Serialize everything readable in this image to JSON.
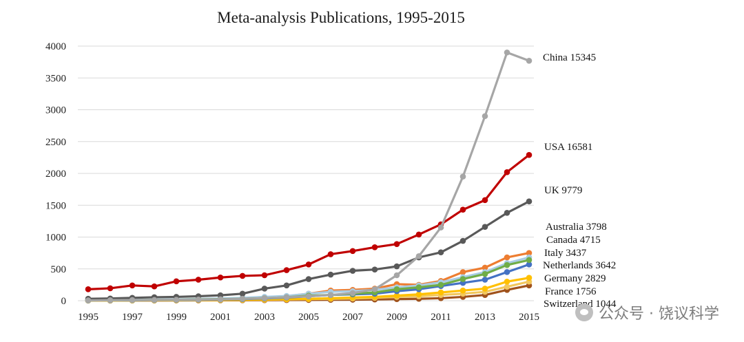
{
  "chart_data": {
    "type": "line",
    "title": "Meta-analysis  Publications, 1995-2015",
    "xlabel": "",
    "ylabel": "",
    "x": [
      1995,
      1996,
      1997,
      1998,
      1999,
      2000,
      2001,
      2002,
      2003,
      2004,
      2005,
      2006,
      2007,
      2008,
      2009,
      2010,
      2011,
      2012,
      2013,
      2014,
      2015
    ],
    "xticks": [
      "1995",
      "1997",
      "1999",
      "2001",
      "2003",
      "2005",
      "2007",
      "2009",
      "2011",
      "2013",
      "2015"
    ],
    "yticks": [
      "0",
      "500",
      "1000",
      "1500",
      "2000",
      "2500",
      "3000",
      "3500",
      "4000"
    ],
    "ylim": [
      0,
      4000
    ],
    "grid": "horizontal",
    "series": [
      {
        "name": "China 15345",
        "color": "#a6a6a6",
        "values": [
          5,
          8,
          10,
          12,
          15,
          18,
          22,
          30,
          40,
          55,
          70,
          90,
          120,
          180,
          400,
          700,
          1150,
          1950,
          2900,
          3900,
          3770
        ]
      },
      {
        "name": "USA 16581",
        "color": "#c00000",
        "values": [
          180,
          195,
          240,
          225,
          305,
          330,
          365,
          390,
          400,
          480,
          570,
          730,
          780,
          840,
          890,
          1040,
          1200,
          1430,
          1580,
          2020,
          2290
        ]
      },
      {
        "name": "UK 9779",
        "color": "#595959",
        "values": [
          30,
          35,
          45,
          55,
          60,
          70,
          85,
          110,
          190,
          240,
          340,
          410,
          470,
          490,
          540,
          680,
          760,
          940,
          1160,
          1380,
          1560
        ]
      },
      {
        "name": "Australia 3798",
        "color": "#70ad47",
        "values": [
          5,
          8,
          10,
          12,
          15,
          20,
          25,
          30,
          40,
          55,
          80,
          90,
          110,
          130,
          180,
          210,
          250,
          340,
          420,
          560,
          640
        ]
      },
      {
        "name": "Canada 4715",
        "color": "#a9cce3",
        "values": [
          10,
          12,
          15,
          18,
          22,
          28,
          35,
          45,
          60,
          75,
          110,
          140,
          150,
          170,
          210,
          240,
          290,
          370,
          450,
          590,
          680
        ]
      },
      {
        "name": "Italy 3437",
        "color": "#ed7d31",
        "values": [
          8,
          10,
          12,
          14,
          16,
          20,
          25,
          35,
          50,
          70,
          110,
          160,
          170,
          190,
          260,
          250,
          310,
          450,
          520,
          680,
          750
        ]
      },
      {
        "name": "Netherlands 3642",
        "color": "#4472c4",
        "values": [
          5,
          6,
          8,
          10,
          12,
          15,
          20,
          25,
          35,
          50,
          70,
          90,
          100,
          110,
          150,
          180,
          230,
          280,
          330,
          450,
          570
        ]
      },
      {
        "name": "Germany  2829",
        "color": "#ffc000",
        "values": [
          3,
          4,
          5,
          6,
          8,
          10,
          12,
          15,
          20,
          25,
          30,
          40,
          50,
          60,
          80,
          100,
          130,
          160,
          190,
          300,
          360
        ]
      },
      {
        "name": "France  1756",
        "color": "#f2c75c",
        "values": [
          2,
          3,
          4,
          5,
          6,
          8,
          10,
          12,
          15,
          20,
          25,
          30,
          35,
          45,
          60,
          70,
          90,
          110,
          140,
          220,
          300
        ]
      },
      {
        "name": "Switzerland  1044",
        "color": "#a0521b",
        "values": [
          2,
          2,
          3,
          3,
          4,
          5,
          6,
          7,
          8,
          10,
          12,
          14,
          16,
          20,
          25,
          30,
          40,
          60,
          90,
          170,
          240
        ]
      }
    ]
  },
  "watermark": {
    "text": "公众号 · 饶议科学"
  }
}
